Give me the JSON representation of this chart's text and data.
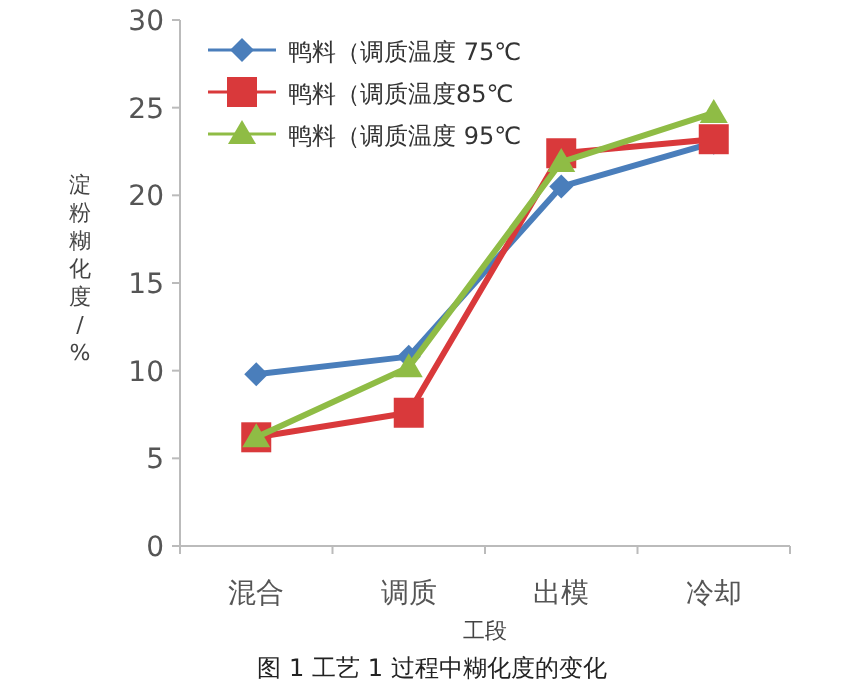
{
  "chart_data": {
    "type": "line",
    "title": "图 1  工艺 1 过程中糊化度的变化",
    "xlabel": "工段",
    "ylabel": "淀粉糊化度/%",
    "categories": [
      "混合",
      "调质",
      "出模",
      "冷却"
    ],
    "series": [
      {
        "name": "鸭料（调质温度 75℃",
        "color": "#4a7ebb",
        "marker": "diamond",
        "values": [
          9.8,
          10.8,
          20.5,
          23.0
        ]
      },
      {
        "name": "鸭料（调质温度85℃",
        "color": "#d9393b",
        "marker": "square",
        "values": [
          6.2,
          7.6,
          22.4,
          23.2
        ]
      },
      {
        "name": "鸭料（调质温度 95℃",
        "color": "#8fbc45",
        "marker": "triangle",
        "values": [
          6.2,
          10.2,
          21.9,
          24.7
        ]
      }
    ],
    "ylim": [
      0,
      30
    ],
    "yticks": [
      0,
      5,
      10,
      15,
      20,
      25,
      30
    ],
    "grid": false,
    "legend": "top left",
    "line_style": "solid"
  }
}
